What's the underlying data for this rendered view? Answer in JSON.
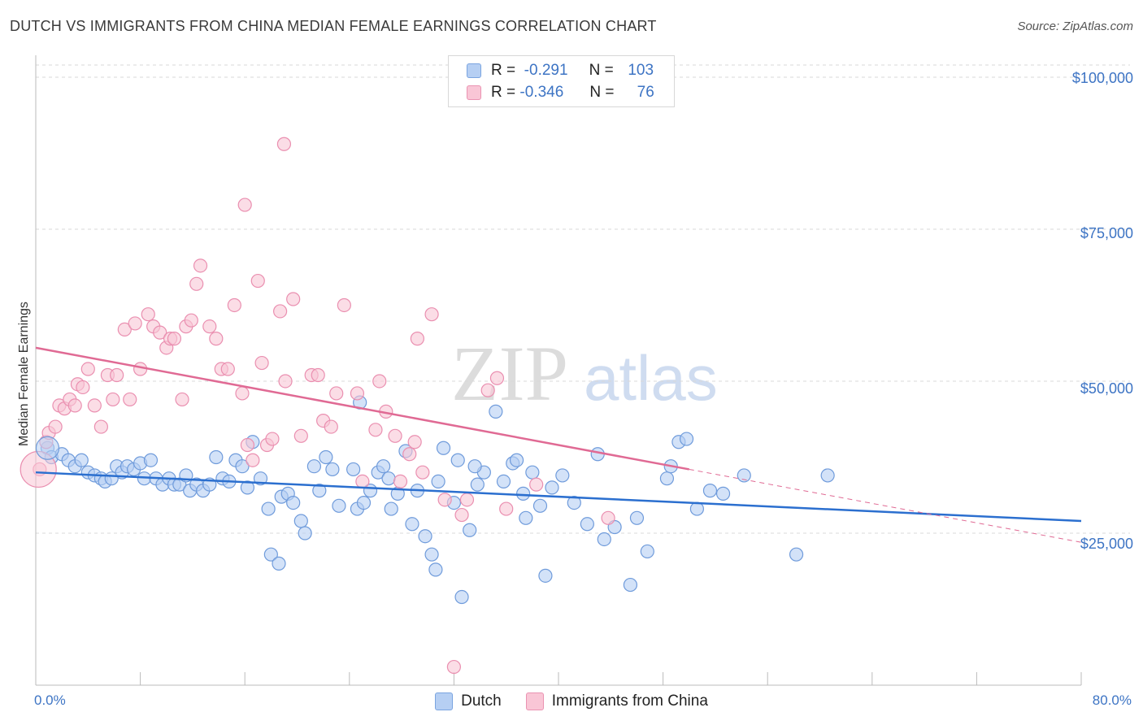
{
  "title": "DUTCH VS IMMIGRANTS FROM CHINA MEDIAN FEMALE EARNINGS CORRELATION CHART",
  "source": "Source: ZipAtlas.com",
  "watermark": {
    "zip": "ZIP",
    "atlas": "atlas"
  },
  "legend": {
    "row1": {
      "r_label": "R =",
      "r_value": "-0.291",
      "n_label": "N =",
      "n_value": "103"
    },
    "row2": {
      "r_label": "R =",
      "r_value": "-0.346",
      "n_label": "N =",
      "n_value": "76"
    }
  },
  "colors": {
    "dutch_fill": "#b6cff3",
    "dutch_stroke": "#6f9bdb",
    "dutch_line": "#2b6fcf",
    "china_fill": "#f9c6d6",
    "china_stroke": "#ea8fb0",
    "china_line": "#e06a94",
    "grid": "#d9d9d9",
    "axis_text": "#3d74c4"
  },
  "chart_data": {
    "type": "scatter",
    "title": "DUTCH VS IMMIGRANTS FROM CHINA MEDIAN FEMALE EARNINGS CORRELATION CHART",
    "xlabel": "",
    "ylabel": "Median Female Earnings",
    "xlim": [
      0,
      80
    ],
    "ylim": [
      0,
      102000
    ],
    "x_tick_labels": [
      "0.0%",
      "80.0%"
    ],
    "y_ticks": [
      25000,
      50000,
      75000,
      100000
    ],
    "y_tick_labels": [
      "$25,000",
      "$50,000",
      "$75,000",
      "$100,000"
    ],
    "grid": "horizontal dashed",
    "legend_position": "top-center and bottom",
    "series": [
      {
        "name": "Dutch",
        "r": -0.291,
        "n": 103,
        "trend": {
          "x": [
            0,
            80
          ],
          "y": [
            35000,
            27000
          ]
        },
        "points": [
          [
            0.9,
            39000
          ],
          [
            1.2,
            37500
          ],
          [
            2.0,
            38000
          ],
          [
            2.5,
            37000
          ],
          [
            3.0,
            36000
          ],
          [
            3.5,
            37000
          ],
          [
            4.0,
            35000
          ],
          [
            4.5,
            34500
          ],
          [
            5.0,
            34000
          ],
          [
            5.3,
            33500
          ],
          [
            5.8,
            34000
          ],
          [
            6.2,
            36000
          ],
          [
            6.6,
            35000
          ],
          [
            7.0,
            36000
          ],
          [
            7.5,
            35500
          ],
          [
            8.0,
            36500
          ],
          [
            8.3,
            34000
          ],
          [
            8.8,
            37000
          ],
          [
            9.2,
            34000
          ],
          [
            9.7,
            33000
          ],
          [
            10.2,
            34000
          ],
          [
            10.6,
            33000
          ],
          [
            11.0,
            33000
          ],
          [
            11.5,
            34500
          ],
          [
            11.8,
            32000
          ],
          [
            12.3,
            33000
          ],
          [
            12.8,
            32000
          ],
          [
            13.3,
            33000
          ],
          [
            13.8,
            37500
          ],
          [
            14.3,
            34000
          ],
          [
            14.8,
            33500
          ],
          [
            15.3,
            37000
          ],
          [
            15.8,
            36000
          ],
          [
            16.2,
            32500
          ],
          [
            16.6,
            40000
          ],
          [
            17.2,
            34000
          ],
          [
            17.8,
            29000
          ],
          [
            18.0,
            21500
          ],
          [
            18.6,
            20000
          ],
          [
            18.8,
            31000
          ],
          [
            19.3,
            31500
          ],
          [
            19.7,
            30000
          ],
          [
            20.3,
            27000
          ],
          [
            20.6,
            25000
          ],
          [
            21.3,
            36000
          ],
          [
            21.7,
            32000
          ],
          [
            22.2,
            37500
          ],
          [
            22.7,
            35500
          ],
          [
            23.2,
            29500
          ],
          [
            24.3,
            35500
          ],
          [
            24.6,
            29000
          ],
          [
            25.1,
            30000
          ],
          [
            25.6,
            32000
          ],
          [
            26.2,
            35000
          ],
          [
            26.6,
            36000
          ],
          [
            27.2,
            29000
          ],
          [
            27.7,
            31500
          ],
          [
            28.3,
            38500
          ],
          [
            28.8,
            26500
          ],
          [
            29.2,
            32000
          ],
          [
            29.8,
            24500
          ],
          [
            30.3,
            21500
          ],
          [
            30.6,
            19000
          ],
          [
            31.2,
            39000
          ],
          [
            32.0,
            30000
          ],
          [
            32.6,
            14500
          ],
          [
            32.3,
            37000
          ],
          [
            33.2,
            25500
          ],
          [
            33.8,
            33000
          ],
          [
            34.3,
            35000
          ],
          [
            35.2,
            45000
          ],
          [
            35.8,
            33500
          ],
          [
            36.5,
            36500
          ],
          [
            37.5,
            27500
          ],
          [
            38.0,
            35000
          ],
          [
            38.6,
            29500
          ],
          [
            39.0,
            18000
          ],
          [
            39.5,
            32500
          ],
          [
            40.3,
            34500
          ],
          [
            41.2,
            30000
          ],
          [
            42.2,
            26500
          ],
          [
            43.0,
            38000
          ],
          [
            43.5,
            24000
          ],
          [
            44.3,
            26000
          ],
          [
            45.5,
            16500
          ],
          [
            46.0,
            27500
          ],
          [
            46.8,
            22000
          ],
          [
            48.3,
            34000
          ],
          [
            48.6,
            36000
          ],
          [
            49.2,
            40000
          ],
          [
            49.8,
            40500
          ],
          [
            50.6,
            29000
          ],
          [
            51.6,
            32000
          ],
          [
            52.6,
            31500
          ],
          [
            54.2,
            34500
          ],
          [
            60.6,
            34500
          ],
          [
            58.2,
            21500
          ],
          [
            24.8,
            46500
          ],
          [
            33.6,
            36000
          ],
          [
            36.8,
            37000
          ],
          [
            37.3,
            31500
          ],
          [
            30.8,
            33500
          ],
          [
            27.0,
            34000
          ]
        ]
      },
      {
        "name": "Immigrants from China",
        "r": -0.346,
        "n": 76,
        "trend": {
          "x": [
            0,
            50
          ],
          "y": [
            55500,
            35500
          ]
        },
        "trend_dashed": {
          "x": [
            50,
            80
          ],
          "y": [
            35500,
            23500
          ]
        },
        "points": [
          [
            0.3,
            35500
          ],
          [
            0.8,
            40000
          ],
          [
            1.0,
            41500
          ],
          [
            1.5,
            42500
          ],
          [
            1.8,
            46000
          ],
          [
            2.2,
            45500
          ],
          [
            2.6,
            47000
          ],
          [
            3.0,
            46000
          ],
          [
            3.2,
            49500
          ],
          [
            3.6,
            49000
          ],
          [
            4.0,
            52000
          ],
          [
            4.5,
            46000
          ],
          [
            5.0,
            42500
          ],
          [
            5.5,
            51000
          ],
          [
            5.9,
            47000
          ],
          [
            6.2,
            51000
          ],
          [
            6.8,
            58500
          ],
          [
            7.2,
            47000
          ],
          [
            7.6,
            59500
          ],
          [
            8.0,
            52000
          ],
          [
            8.6,
            61000
          ],
          [
            9.0,
            59000
          ],
          [
            9.5,
            58000
          ],
          [
            10.0,
            55500
          ],
          [
            10.3,
            57000
          ],
          [
            10.6,
            57000
          ],
          [
            11.2,
            47000
          ],
          [
            11.5,
            59000
          ],
          [
            11.9,
            60000
          ],
          [
            12.3,
            66000
          ],
          [
            12.6,
            69000
          ],
          [
            13.3,
            59000
          ],
          [
            13.8,
            57000
          ],
          [
            14.2,
            52000
          ],
          [
            14.7,
            52000
          ],
          [
            15.2,
            62500
          ],
          [
            15.8,
            48000
          ],
          [
            16.2,
            39500
          ],
          [
            16.6,
            37000
          ],
          [
            17.0,
            66500
          ],
          [
            17.3,
            53000
          ],
          [
            17.7,
            39500
          ],
          [
            18.1,
            40500
          ],
          [
            18.7,
            61500
          ],
          [
            19.1,
            50000
          ],
          [
            19.7,
            63500
          ],
          [
            20.3,
            41000
          ],
          [
            21.1,
            51000
          ],
          [
            21.6,
            51000
          ],
          [
            22.0,
            43500
          ],
          [
            22.6,
            42500
          ],
          [
            23.0,
            48000
          ],
          [
            23.6,
            62500
          ],
          [
            24.6,
            48000
          ],
          [
            25.0,
            33500
          ],
          [
            26.0,
            42000
          ],
          [
            26.3,
            50000
          ],
          [
            26.8,
            45000
          ],
          [
            27.5,
            41000
          ],
          [
            27.9,
            33500
          ],
          [
            28.6,
            38000
          ],
          [
            29.0,
            40000
          ],
          [
            29.6,
            35000
          ],
          [
            29.2,
            57000
          ],
          [
            30.3,
            61000
          ],
          [
            31.3,
            30500
          ],
          [
            32.6,
            28000
          ],
          [
            33.0,
            30500
          ],
          [
            34.6,
            48500
          ],
          [
            35.3,
            50500
          ],
          [
            36.0,
            29000
          ],
          [
            38.3,
            33000
          ],
          [
            43.8,
            27500
          ],
          [
            16.0,
            79000
          ],
          [
            19.0,
            89000
          ],
          [
            32.0,
            3000
          ]
        ]
      }
    ]
  }
}
